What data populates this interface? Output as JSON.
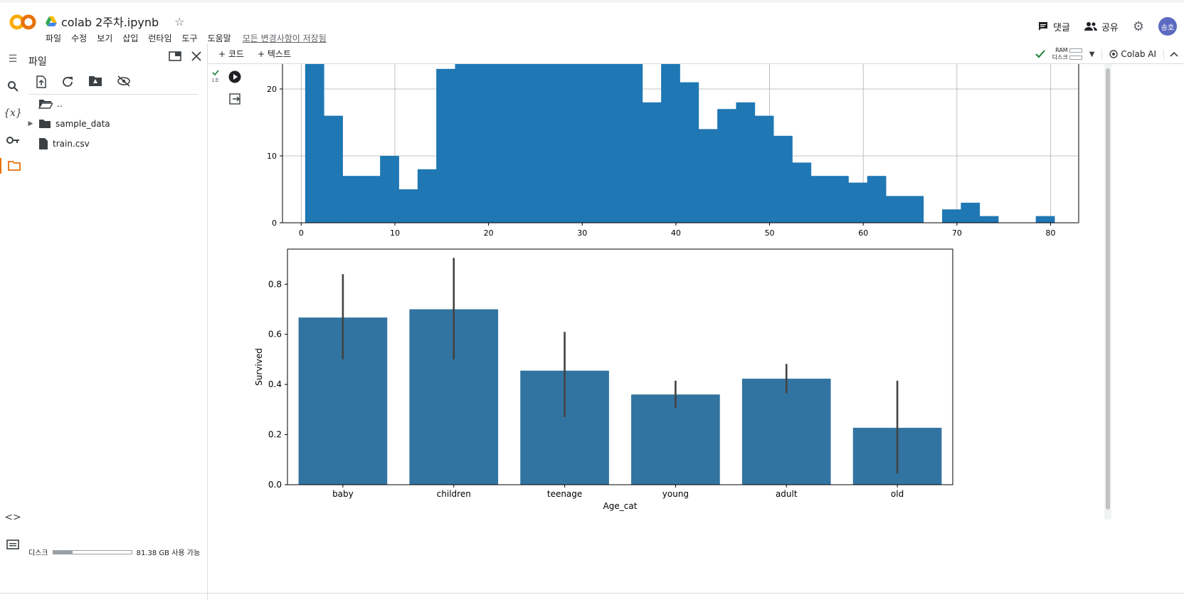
{
  "app": {
    "notebook_title": "colab 2주차.ipynb",
    "menu": [
      "파일",
      "수정",
      "보기",
      "삽입",
      "런타임",
      "도구",
      "도움말"
    ],
    "saved_status": "모든 변경사항이 저장됨",
    "comments_label": "댓글",
    "share_label": "공유",
    "avatar_text": "송호"
  },
  "files_panel": {
    "title": "파일",
    "items": [
      {
        "name": "..",
        "type": "folder-open"
      },
      {
        "name": "sample_data",
        "type": "folder"
      },
      {
        "name": "train.csv",
        "type": "file"
      }
    ],
    "disk_label": "디스크",
    "disk_free": "81.38 GB 사용 가능",
    "disk_used_fraction": 0.25
  },
  "toolbar": {
    "add_code": "+ 코드",
    "add_text": "+ 텍스트",
    "ram_label": "RAM",
    "disk_label": "디스크",
    "colab_ai": "Colab AI"
  },
  "cell": {
    "exec_time": "1초"
  },
  "chart_data": [
    {
      "type": "bar",
      "subtype": "histogram",
      "bin_width": 2,
      "x_start": 0.42,
      "bin_values": [
        24,
        16,
        7,
        7,
        10,
        5,
        8,
        23,
        24,
        24,
        24,
        24,
        24,
        24,
        24,
        24,
        24,
        24,
        18,
        24,
        21,
        14,
        17,
        18,
        16,
        13,
        9,
        7,
        7,
        6,
        7,
        4,
        4,
        0,
        2,
        3,
        1,
        0,
        0,
        1
      ],
      "xlim": [
        -2,
        83
      ],
      "ylim_visible": [
        0,
        24
      ],
      "xticks": [
        0,
        10,
        20,
        30,
        40,
        50,
        60,
        70,
        80
      ],
      "yticks": [
        0,
        10,
        20
      ],
      "grid": true,
      "color": "#1f77b4"
    },
    {
      "type": "bar",
      "categories": [
        "baby",
        "children",
        "teenage",
        "young",
        "adult",
        "old"
      ],
      "values": [
        0.667,
        0.7,
        0.455,
        0.36,
        0.423,
        0.227
      ],
      "ci_low": [
        0.5,
        0.5,
        0.27,
        0.305,
        0.365,
        0.045
      ],
      "ci_high": [
        0.84,
        0.905,
        0.61,
        0.415,
        0.482,
        0.415
      ],
      "xlabel": "Age_cat",
      "ylabel": "Survived",
      "ylim": [
        0,
        0.94
      ],
      "yticks": [
        0.0,
        0.2,
        0.4,
        0.6,
        0.8
      ],
      "color": "#3274a1",
      "errcolor": "#424242"
    }
  ]
}
